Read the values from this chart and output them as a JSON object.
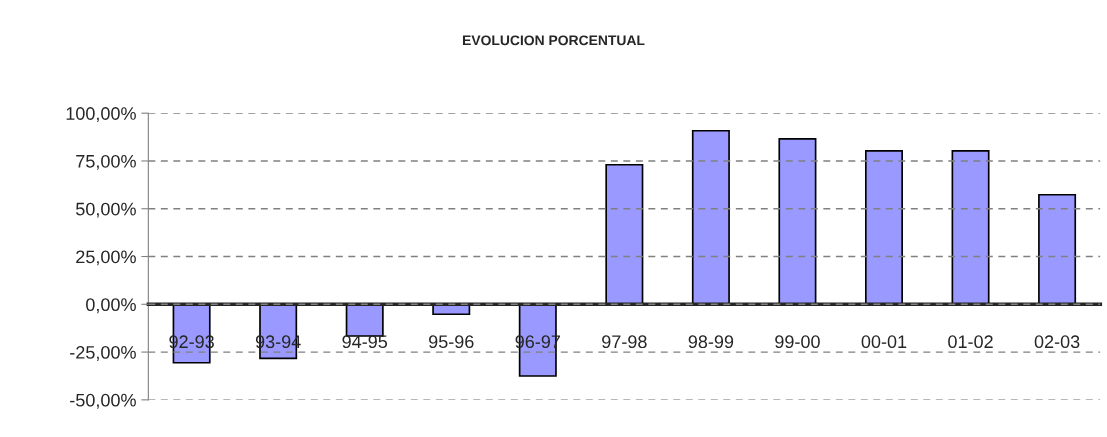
{
  "chart_data": {
    "type": "bar",
    "title": "EVOLUCION PORCENTUAL",
    "categories": [
      "92-93",
      "93-94",
      "94-95",
      "95-96",
      "96-97",
      "97-98",
      "98-99",
      "99-00",
      "00-01",
      "01-02",
      "02-03"
    ],
    "values": [
      -30.6,
      -28.3,
      -16.6,
      -5.2,
      -37.5,
      73.0,
      90.8,
      86.6,
      80.3,
      80.3,
      57.3
    ],
    "color": "#9999ff",
    "ylim": [
      -50,
      100
    ],
    "yticks": [
      {
        "value": -50,
        "label": "-50,00%"
      },
      {
        "value": -25,
        "label": "-25,00%"
      },
      {
        "value": 0,
        "label": "0,00%"
      },
      {
        "value": 25,
        "label": "25,00%"
      },
      {
        "value": 50,
        "label": "50,00%"
      },
      {
        "value": 75,
        "label": "75,00%"
      },
      {
        "value": 100,
        "label": "100,00%"
      }
    ],
    "grid": "y",
    "legend": false
  }
}
